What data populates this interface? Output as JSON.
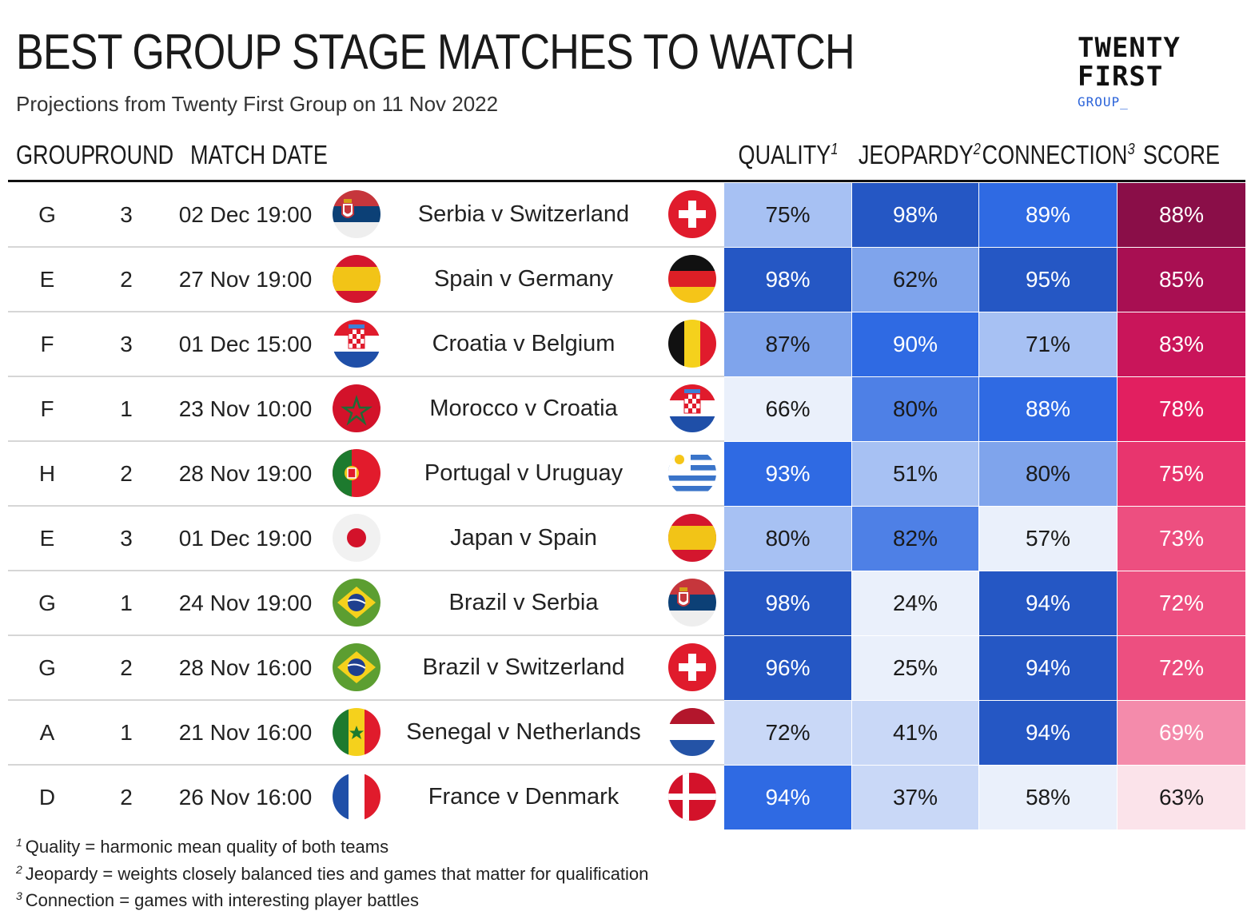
{
  "title": "BEST GROUP STAGE MATCHES TO WATCH",
  "subtitle": "Projections from Twenty First Group on 11 Nov 2022",
  "logo": {
    "line1": "TWENTY",
    "line2": "FIRST",
    "line3": "GROUP_"
  },
  "headers": {
    "group": "GROUP",
    "round": "ROUND",
    "match_date": "MATCH DATE",
    "quality": "QUALITY",
    "quality_sup": "1",
    "jeopardy": "JEOPARDY",
    "jeopardy_sup": "2",
    "connection": "CONNECTION",
    "connection_sup": "3",
    "score": "SCORE"
  },
  "footnotes": [
    {
      "sup": "1",
      "text": "Quality = harmonic mean quality of both teams"
    },
    {
      "sup": "2",
      "text": "Jeopardy = weights closely balanced ties and games that matter for qualification"
    },
    {
      "sup": "3",
      "text": "Connection = games with interesting player battles"
    }
  ],
  "colors": {
    "blue_scale": [
      "#eaf0fb",
      "#c9d8f7",
      "#a7c1f3",
      "#7fa4ec",
      "#4e80e6",
      "#2f6ae3",
      "#2557c4"
    ],
    "score_scale": [
      "#fbe3ea",
      "#f48bab",
      "#ed4f80",
      "#e8356e",
      "#e21f60",
      "#c9155a",
      "#a80f52",
      "#8a0e48"
    ]
  },
  "chart_data": {
    "type": "table",
    "columns": [
      "GROUP",
      "ROUND",
      "MATCH DATE",
      "MATCH",
      "QUALITY",
      "JEOPARDY",
      "CONNECTION",
      "SCORE"
    ],
    "rows": [
      {
        "group": "G",
        "round": "3",
        "date": "02 Dec 19:00",
        "match": "Serbia v Switzerland",
        "home_flag": "serbia",
        "away_flag": "switzerland",
        "quality": 75,
        "jeopardy": 98,
        "connection": 89,
        "score": 88
      },
      {
        "group": "E",
        "round": "2",
        "date": "27 Nov 19:00",
        "match": "Spain v Germany",
        "home_flag": "spain",
        "away_flag": "germany",
        "quality": 98,
        "jeopardy": 62,
        "connection": 95,
        "score": 85
      },
      {
        "group": "F",
        "round": "3",
        "date": "01 Dec 15:00",
        "match": "Croatia v Belgium",
        "home_flag": "croatia",
        "away_flag": "belgium",
        "quality": 87,
        "jeopardy": 90,
        "connection": 71,
        "score": 83
      },
      {
        "group": "F",
        "round": "1",
        "date": "23 Nov 10:00",
        "match": "Morocco v Croatia",
        "home_flag": "morocco",
        "away_flag": "croatia",
        "quality": 66,
        "jeopardy": 80,
        "connection": 88,
        "score": 78
      },
      {
        "group": "H",
        "round": "2",
        "date": "28 Nov 19:00",
        "match": "Portugal v Uruguay",
        "home_flag": "portugal",
        "away_flag": "uruguay",
        "quality": 93,
        "jeopardy": 51,
        "connection": 80,
        "score": 75
      },
      {
        "group": "E",
        "round": "3",
        "date": "01 Dec 19:00",
        "match": "Japan v Spain",
        "home_flag": "japan",
        "away_flag": "spain",
        "quality": 80,
        "jeopardy": 82,
        "connection": 57,
        "score": 73
      },
      {
        "group": "G",
        "round": "1",
        "date": "24 Nov 19:00",
        "match": "Brazil v Serbia",
        "home_flag": "brazil",
        "away_flag": "serbia",
        "quality": 98,
        "jeopardy": 24,
        "connection": 94,
        "score": 72
      },
      {
        "group": "G",
        "round": "2",
        "date": "28 Nov 16:00",
        "match": "Brazil v Switzerland",
        "home_flag": "brazil",
        "away_flag": "switzerland",
        "quality": 96,
        "jeopardy": 25,
        "connection": 94,
        "score": 72
      },
      {
        "group": "A",
        "round": "1",
        "date": "21 Nov 16:00",
        "match": "Senegal v Netherlands",
        "home_flag": "senegal",
        "away_flag": "netherlands",
        "quality": 72,
        "jeopardy": 41,
        "connection": 94,
        "score": 69
      },
      {
        "group": "D",
        "round": "2",
        "date": "26 Nov 16:00",
        "match": "France v Denmark",
        "home_flag": "france",
        "away_flag": "denmark",
        "quality": 94,
        "jeopardy": 37,
        "connection": 58,
        "score": 63
      }
    ]
  }
}
